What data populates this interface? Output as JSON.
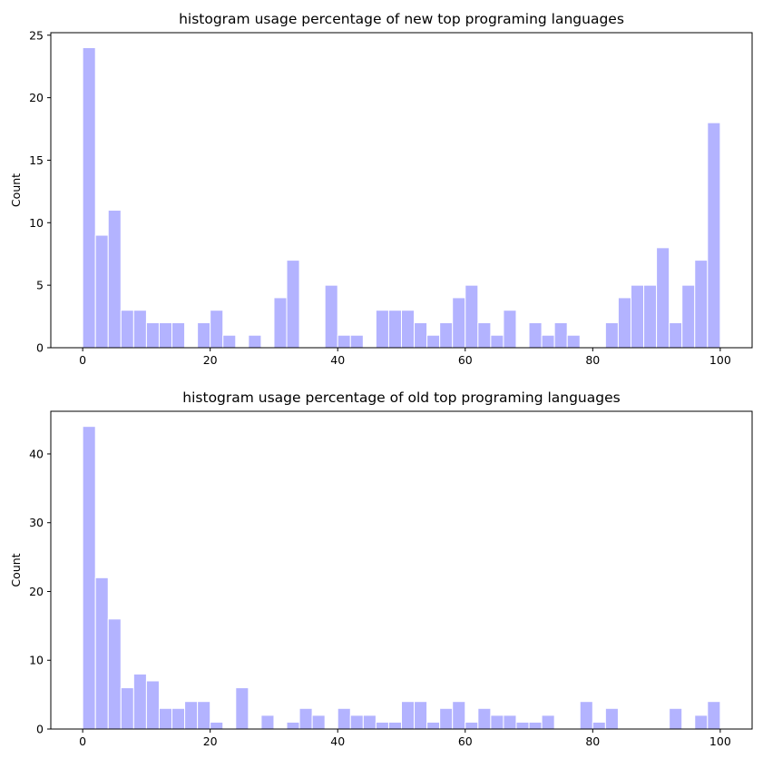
{
  "chart_data": [
    {
      "type": "bar",
      "title": "histogram usage percentage of new top programing languages",
      "xlabel": "",
      "ylabel": "Count",
      "xlim": [
        -5,
        105
      ],
      "ylim": [
        0,
        25.2
      ],
      "bin_width": 2,
      "x_ticks": [
        0,
        20,
        40,
        60,
        80,
        100
      ],
      "y_ticks": [
        0,
        5,
        10,
        15,
        20,
        25
      ],
      "grid": false,
      "bar_color": "#b3b3ff",
      "bins_start": [
        0,
        2,
        4,
        6,
        8,
        10,
        12,
        14,
        16,
        18,
        20,
        22,
        24,
        26,
        28,
        30,
        32,
        34,
        36,
        38,
        40,
        42,
        44,
        46,
        48,
        50,
        52,
        54,
        56,
        58,
        60,
        62,
        64,
        66,
        68,
        70,
        72,
        74,
        76,
        78,
        80,
        82,
        84,
        86,
        88,
        90,
        92,
        94,
        96,
        98
      ],
      "values": [
        24,
        9,
        11,
        3,
        3,
        2,
        2,
        2,
        0,
        2,
        3,
        1,
        0,
        1,
        0,
        4,
        7,
        0,
        0,
        5,
        1,
        1,
        0,
        3,
        3,
        3,
        2,
        1,
        2,
        4,
        5,
        2,
        1,
        3,
        0,
        2,
        1,
        2,
        1,
        0,
        0,
        2,
        4,
        5,
        5,
        8,
        2,
        5,
        7,
        18
      ]
    },
    {
      "type": "bar",
      "title": "histogram usage percentage of old top programing languages",
      "xlabel": "",
      "ylabel": "Count",
      "xlim": [
        -5,
        105
      ],
      "ylim": [
        0,
        46.2
      ],
      "bin_width": 2,
      "x_ticks": [
        0,
        20,
        40,
        60,
        80,
        100
      ],
      "y_ticks": [
        0,
        10,
        20,
        30,
        40
      ],
      "grid": false,
      "bar_color": "#b3b3ff",
      "bins_start": [
        0,
        2,
        4,
        6,
        8,
        10,
        12,
        14,
        16,
        18,
        20,
        22,
        24,
        26,
        28,
        30,
        32,
        34,
        36,
        38,
        40,
        42,
        44,
        46,
        48,
        50,
        52,
        54,
        56,
        58,
        60,
        62,
        64,
        66,
        68,
        70,
        72,
        74,
        76,
        78,
        80,
        82,
        84,
        86,
        88,
        90,
        92,
        94,
        96,
        98
      ],
      "values": [
        44,
        22,
        16,
        6,
        8,
        7,
        3,
        3,
        4,
        4,
        1,
        0,
        6,
        0,
        2,
        0,
        1,
        3,
        2,
        0,
        3,
        2,
        2,
        1,
        1,
        4,
        4,
        1,
        3,
        4,
        1,
        3,
        2,
        2,
        1,
        1,
        2,
        0,
        0,
        4,
        1,
        3,
        0,
        0,
        0,
        0,
        3,
        0,
        2,
        4
      ]
    }
  ]
}
